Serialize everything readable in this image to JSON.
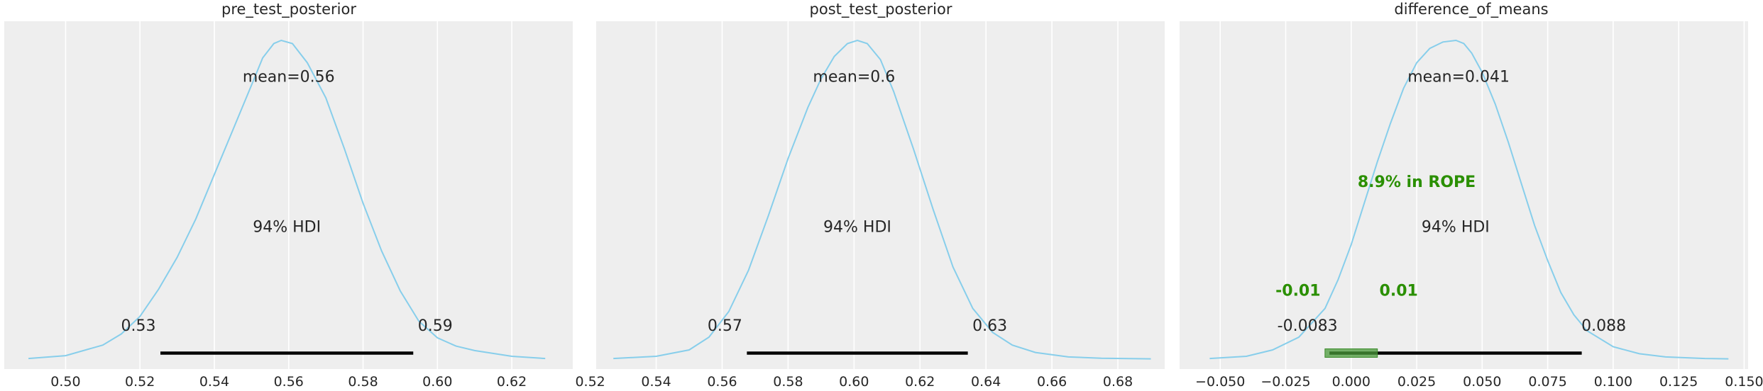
{
  "chart_data": [
    {
      "type": "area",
      "title": "pre_test_posterior",
      "xlim": [
        0.4835,
        0.6364
      ],
      "ylim": [
        -0.03,
        1.06
      ],
      "grid": true,
      "x_ticks": [
        0.5,
        0.52,
        0.54,
        0.56,
        0.58,
        0.6,
        0.62
      ],
      "x_tick_labels": [
        "0.50",
        "0.52",
        "0.54",
        "0.56",
        "0.58",
        "0.60",
        "0.62"
      ],
      "line_color": "#87ceeb",
      "density": {
        "x": [
          0.49,
          0.5,
          0.51,
          0.515,
          0.52,
          0.525,
          0.53,
          0.535,
          0.54,
          0.545,
          0.55,
          0.553,
          0.556,
          0.558,
          0.561,
          0.565,
          0.57,
          0.575,
          0.58,
          0.585,
          0.59,
          0.595,
          0.6,
          0.605,
          0.61,
          0.62,
          0.629
        ],
        "y": [
          0.003,
          0.012,
          0.045,
          0.08,
          0.135,
          0.22,
          0.32,
          0.44,
          0.58,
          0.72,
          0.86,
          0.945,
          0.99,
          1.0,
          0.99,
          0.93,
          0.82,
          0.66,
          0.49,
          0.34,
          0.215,
          0.12,
          0.068,
          0.042,
          0.028,
          0.01,
          0.003
        ]
      },
      "mean": 0.56,
      "mean_label": "mean=0.56",
      "hdi_prob_label": "94% HDI",
      "hdi": [
        0.5255,
        0.5935
      ],
      "hdi_lower_label": "0.53",
      "hdi_upper_label": "0.59"
    },
    {
      "type": "area",
      "title": "post_test_posterior",
      "xlim": [
        0.5218,
        0.6942
      ],
      "ylim": [
        -0.03,
        1.06
      ],
      "grid": true,
      "x_ticks": [
        0.52,
        0.54,
        0.56,
        0.58,
        0.6,
        0.62,
        0.64,
        0.66,
        0.68
      ],
      "x_tick_labels": [
        "0.52",
        "0.54",
        "0.56",
        "0.58",
        "0.60",
        "0.62",
        "0.64",
        "0.66",
        "0.68"
      ],
      "line_color": "#87ceeb",
      "density": {
        "x": [
          0.527,
          0.54,
          0.55,
          0.556,
          0.562,
          0.568,
          0.574,
          0.58,
          0.586,
          0.59,
          0.594,
          0.598,
          0.601,
          0.604,
          0.608,
          0.612,
          0.618,
          0.624,
          0.63,
          0.636,
          0.642,
          0.648,
          0.655,
          0.665,
          0.675,
          0.69
        ],
        "y": [
          0.003,
          0.01,
          0.03,
          0.07,
          0.15,
          0.28,
          0.45,
          0.63,
          0.79,
          0.88,
          0.95,
          0.99,
          1.0,
          0.99,
          0.94,
          0.84,
          0.66,
          0.47,
          0.29,
          0.16,
          0.085,
          0.045,
          0.022,
          0.008,
          0.004,
          0.002
        ]
      },
      "mean": 0.6,
      "mean_label": "mean=0.6",
      "hdi_prob_label": "94% HDI",
      "hdi": [
        0.5675,
        0.6345
      ],
      "hdi_lower_label": "0.57",
      "hdi_upper_label": "0.63"
    },
    {
      "type": "area",
      "title": "difference_of_means",
      "xlim": [
        -0.0655,
        0.1515
      ],
      "ylim": [
        -0.03,
        1.06
      ],
      "grid": true,
      "x_ticks": [
        -0.05,
        -0.025,
        0.0,
        0.025,
        0.05,
        0.075,
        0.1,
        0.125,
        0.15
      ],
      "x_tick_labels": [
        "−0.050",
        "−0.025",
        "0.000",
        "0.025",
        "0.050",
        "0.075",
        "0.100",
        "0.125",
        "0.150"
      ],
      "line_color": "#87ceeb",
      "density": {
        "x": [
          -0.054,
          -0.04,
          -0.03,
          -0.02,
          -0.01,
          -0.005,
          0.0,
          0.005,
          0.01,
          0.015,
          0.02,
          0.025,
          0.03,
          0.035,
          0.04,
          0.043,
          0.046,
          0.05,
          0.055,
          0.06,
          0.065,
          0.07,
          0.075,
          0.08,
          0.085,
          0.09,
          0.1,
          0.11,
          0.12,
          0.135,
          0.144
        ],
        "y": [
          0.003,
          0.01,
          0.03,
          0.07,
          0.16,
          0.25,
          0.36,
          0.49,
          0.62,
          0.74,
          0.85,
          0.93,
          0.975,
          0.995,
          1.0,
          0.99,
          0.96,
          0.9,
          0.8,
          0.68,
          0.55,
          0.42,
          0.31,
          0.21,
          0.14,
          0.09,
          0.04,
          0.018,
          0.008,
          0.003,
          0.002
        ]
      },
      "mean": 0.041,
      "mean_label": "mean=0.041",
      "hdi_prob_label": "94% HDI",
      "hdi": [
        -0.0083,
        0.088
      ],
      "hdi_lower_label": "-0.0083",
      "hdi_upper_label": "0.088",
      "rope": [
        -0.01,
        0.01
      ],
      "rope_lower_label": "-0.01",
      "rope_upper_label": "0.01",
      "rope_label": "8.9% in ROPE",
      "rope_color": "#2a8f00",
      "rope_band_color": "#4a9a3a"
    }
  ]
}
